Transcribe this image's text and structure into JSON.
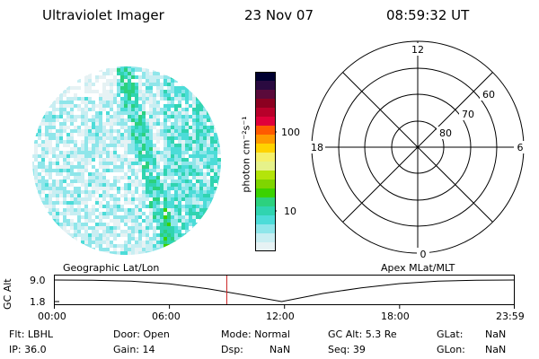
{
  "header": {
    "title": "Ultraviolet Imager",
    "date": "23 Nov 07",
    "time": "08:59:32 UT"
  },
  "colorbar": {
    "unit_label": "photon cm⁻²s⁻¹",
    "ticks": [
      "100",
      "10"
    ],
    "colors": [
      "#000030",
      "#2a0a40",
      "#5a0a3a",
      "#8b0020",
      "#b8002a",
      "#e0003a",
      "#ff5a00",
      "#ff9a00",
      "#ffd300",
      "#f5f06a",
      "#e6f28a",
      "#b4e40a",
      "#7fd500",
      "#3bd200",
      "#2cd17e",
      "#30d4b0",
      "#4cdcd8",
      "#8fe6ea",
      "#c8eef2",
      "#e6f2f4"
    ]
  },
  "polar_plot": {
    "mlt_labels": [
      "12",
      "18",
      "6",
      "0"
    ],
    "lat_labels": [
      "60",
      "70",
      "80"
    ]
  },
  "timeline": {
    "left_title": "Geographic Lat/Lon",
    "right_title": "Apex  MLat/MLT",
    "axis_label": "GC Alt",
    "y_ticks": [
      "9.0",
      "1.8"
    ],
    "x_ticks": [
      "00:00",
      "06:00",
      "12:00",
      "18:00",
      "23:59"
    ],
    "marker_color": "#cc2222",
    "gc_alt_curve": {
      "x_hours": [
        0,
        2,
        4,
        6,
        8,
        10,
        11.85,
        14,
        16,
        18,
        20,
        22,
        23.98
      ],
      "y_re": [
        9.0,
        8.95,
        8.6,
        7.7,
        6.1,
        3.9,
        1.8,
        4.5,
        6.4,
        7.8,
        8.6,
        8.95,
        9.0
      ]
    },
    "marker_hours": 8.99
  },
  "footer": {
    "flt": "Flt: LBHL",
    "ip": "IP: 36.0",
    "door": "Door: Open",
    "gain": "Gain: 14",
    "mode": "Mode: Normal",
    "dsp": "Dsp:",
    "dsp_val": "NaN",
    "gc_alt": "GC Alt: 5.3 Re",
    "seq": "Seq: 39",
    "glat": "GLat:",
    "glat_val": "NaN",
    "glon": "GLon:",
    "glon_val": "NaN"
  }
}
